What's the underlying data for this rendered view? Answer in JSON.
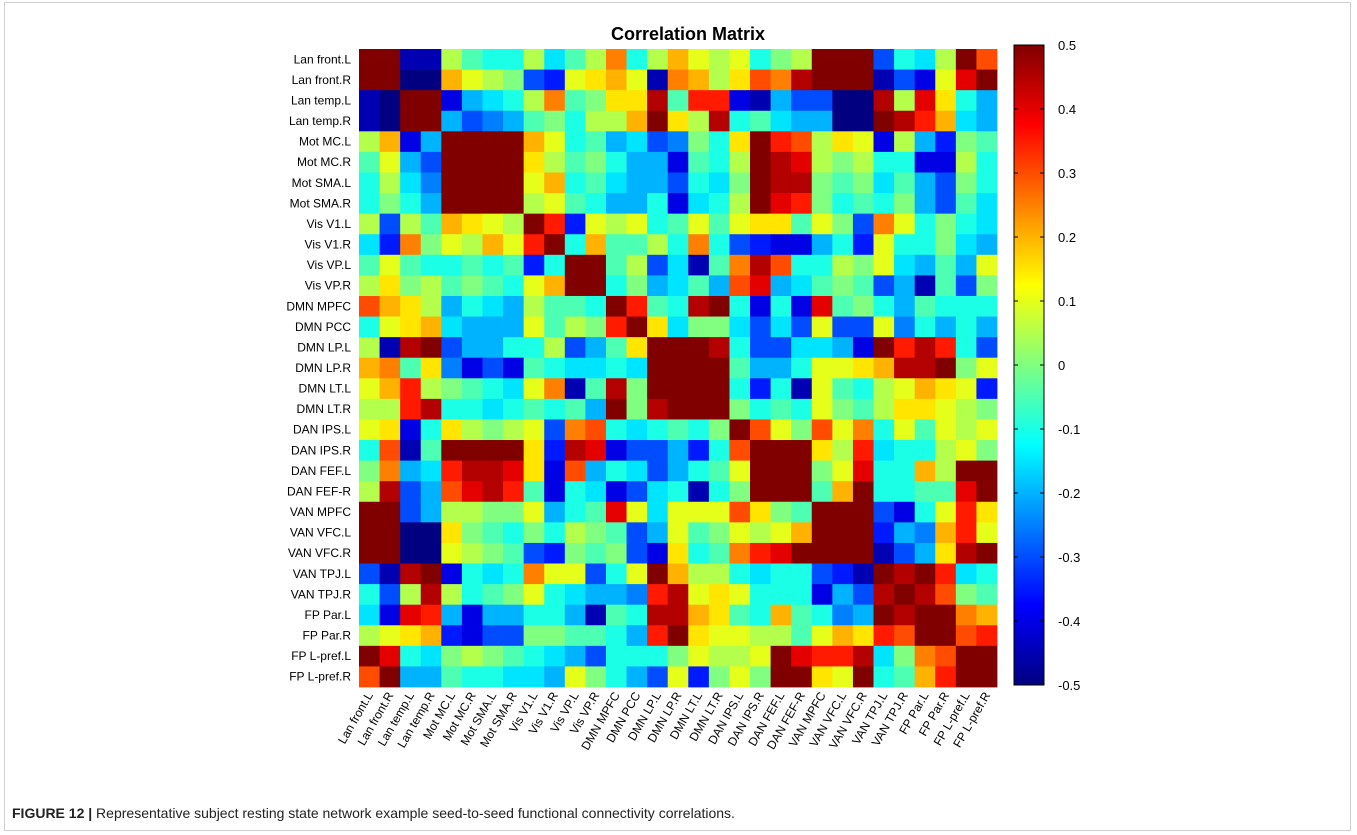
{
  "caption": {
    "label": "FIGURE 12 |",
    "text": " Representative subject resting state network example seed-to-seed functional connectivity correlations."
  },
  "chart_data": {
    "type": "heatmap",
    "title": "Correlation Matrix",
    "labels": [
      "Lan front.L",
      "Lan front.R",
      "Lan temp.L",
      "Lan temp.R",
      "Mot MC.L",
      "Mot MC.R",
      "Mot SMA.L",
      "Mot SMA.R",
      "Vis V1.L",
      "Vis V1.R",
      "Vis VP.L",
      "Vis VP.R",
      "DMN MPFC",
      "DMN PCC",
      "DMN LP.L",
      "DMN LP.R",
      "DMN LT.L",
      "DMN LT.R",
      "DAN IPS.L",
      "DAN IPS.R",
      "DAN FEF.L",
      "DAN FEF-R",
      "VAN MPFC",
      "VAN VFC.L",
      "VAN VFC.R",
      "VAN TPJ.L",
      "VAN TPJ.R",
      "FP Par.L",
      "FP Par.R",
      "FP L-pref.L",
      "FP L-pref.R"
    ],
    "colorbar": {
      "min": -0.5,
      "max": 0.5,
      "colormap": "jet",
      "ticks": [
        0.5,
        0.4,
        0.3,
        0.2,
        0.1,
        0,
        -0.1,
        -0.2,
        -0.3,
        -0.4,
        -0.5
      ],
      "tick_labels": [
        "0.5",
        "0.4",
        "0.3",
        "0.2",
        "0.1",
        "0",
        "-0.1",
        "-0.2",
        "-0.3",
        "-0.4",
        "-0.5"
      ]
    },
    "values": [
      [
        0.5,
        0.5,
        -0.45,
        -0.45,
        0.05,
        -0.05,
        -0.1,
        -0.1,
        0.05,
        -0.15,
        -0.05,
        0.05,
        0.25,
        -0.1,
        0.05,
        0.2,
        0.1,
        0.05,
        0.1,
        -0.1,
        0.0,
        0.05,
        0.5,
        0.5,
        0.5,
        -0.3,
        -0.1,
        -0.15,
        0.05,
        0.5,
        0.3
      ],
      [
        0.5,
        0.5,
        -0.5,
        -0.5,
        0.2,
        0.1,
        0.05,
        0.0,
        -0.3,
        -0.35,
        0.1,
        0.15,
        0.2,
        0.1,
        -0.45,
        0.25,
        0.2,
        0.05,
        0.15,
        0.3,
        0.25,
        0.45,
        0.5,
        0.5,
        0.5,
        -0.45,
        -0.3,
        -0.4,
        0.1,
        0.4,
        0.5
      ],
      [
        -0.45,
        -0.5,
        0.5,
        0.5,
        -0.4,
        -0.2,
        -0.15,
        -0.1,
        0.05,
        0.25,
        -0.05,
        0.0,
        0.15,
        0.15,
        0.45,
        -0.05,
        0.35,
        0.35,
        -0.4,
        -0.45,
        -0.2,
        -0.3,
        -0.3,
        -0.5,
        -0.5,
        0.45,
        0.05,
        0.4,
        0.15,
        -0.1,
        -0.2
      ],
      [
        -0.45,
        -0.5,
        0.5,
        0.5,
        -0.2,
        -0.3,
        -0.25,
        -0.2,
        -0.05,
        0.0,
        -0.1,
        0.05,
        0.05,
        0.2,
        0.5,
        0.15,
        0.05,
        0.45,
        -0.1,
        -0.05,
        -0.15,
        -0.2,
        -0.2,
        -0.5,
        -0.5,
        0.5,
        0.45,
        0.35,
        0.2,
        -0.15,
        -0.2
      ],
      [
        0.05,
        0.2,
        -0.4,
        -0.2,
        0.5,
        0.5,
        0.5,
        0.5,
        0.2,
        0.1,
        -0.1,
        -0.05,
        -0.2,
        -0.15,
        -0.3,
        -0.25,
        0.0,
        -0.1,
        0.15,
        0.5,
        0.35,
        0.3,
        0.05,
        0.15,
        0.1,
        -0.4,
        0.05,
        -0.2,
        -0.35,
        0.0,
        -0.05
      ],
      [
        -0.05,
        0.1,
        -0.2,
        -0.3,
        0.5,
        0.5,
        0.5,
        0.5,
        0.15,
        0.05,
        -0.05,
        0.0,
        -0.1,
        -0.2,
        -0.2,
        -0.4,
        -0.05,
        -0.1,
        0.05,
        0.5,
        0.45,
        0.4,
        0.05,
        0.0,
        0.05,
        -0.1,
        -0.1,
        -0.4,
        -0.4,
        0.05,
        -0.1
      ],
      [
        -0.1,
        0.05,
        -0.15,
        -0.25,
        0.5,
        0.5,
        0.5,
        0.5,
        0.1,
        0.2,
        -0.1,
        -0.05,
        -0.15,
        -0.2,
        -0.2,
        -0.3,
        -0.1,
        -0.15,
        0.0,
        0.5,
        0.45,
        0.45,
        0.0,
        -0.05,
        0.0,
        -0.15,
        -0.05,
        -0.2,
        -0.3,
        0.0,
        -0.1
      ],
      [
        -0.1,
        0.0,
        -0.1,
        -0.2,
        0.5,
        0.5,
        0.5,
        0.5,
        0.05,
        0.1,
        -0.05,
        -0.1,
        -0.2,
        -0.2,
        -0.1,
        -0.4,
        -0.15,
        -0.1,
        0.05,
        0.5,
        0.4,
        0.35,
        0.0,
        -0.1,
        -0.05,
        -0.1,
        0.0,
        -0.2,
        -0.3,
        -0.05,
        -0.15
      ],
      [
        0.05,
        -0.3,
        0.05,
        -0.05,
        0.2,
        0.15,
        0.1,
        0.05,
        0.5,
        0.35,
        -0.35,
        0.1,
        0.05,
        0.1,
        -0.1,
        -0.05,
        0.1,
        -0.05,
        0.1,
        0.15,
        0.15,
        -0.05,
        0.1,
        0.0,
        -0.3,
        0.25,
        0.1,
        -0.1,
        0.0,
        -0.1,
        -0.15
      ],
      [
        -0.15,
        -0.35,
        0.25,
        0.0,
        0.1,
        0.05,
        0.2,
        0.1,
        0.35,
        0.5,
        -0.1,
        0.2,
        -0.05,
        -0.05,
        0.05,
        -0.1,
        0.25,
        -0.1,
        -0.3,
        -0.35,
        -0.4,
        -0.4,
        -0.2,
        -0.1,
        -0.35,
        0.1,
        -0.1,
        -0.1,
        0.0,
        -0.15,
        -0.2
      ],
      [
        -0.05,
        0.1,
        -0.05,
        -0.1,
        -0.1,
        -0.05,
        -0.1,
        -0.05,
        -0.35,
        -0.1,
        0.5,
        0.5,
        -0.05,
        0.05,
        -0.3,
        -0.15,
        -0.45,
        -0.05,
        0.25,
        0.45,
        0.3,
        -0.1,
        -0.1,
        0.05,
        0.0,
        0.1,
        -0.15,
        -0.2,
        -0.05,
        -0.2,
        0.1
      ],
      [
        0.05,
        0.15,
        0.0,
        0.05,
        -0.05,
        0.0,
        -0.05,
        -0.1,
        0.1,
        0.2,
        0.5,
        0.5,
        -0.1,
        0.0,
        -0.2,
        -0.15,
        -0.05,
        -0.2,
        0.3,
        0.4,
        -0.2,
        -0.15,
        -0.05,
        0.0,
        -0.05,
        -0.3,
        -0.2,
        -0.45,
        -0.05,
        -0.3,
        0.0
      ],
      [
        0.3,
        0.2,
        0.15,
        0.05,
        -0.2,
        -0.1,
        -0.15,
        -0.2,
        0.05,
        -0.05,
        -0.05,
        -0.1,
        0.5,
        0.35,
        -0.05,
        -0.1,
        0.45,
        0.5,
        -0.1,
        -0.4,
        -0.1,
        -0.4,
        0.4,
        -0.05,
        0.0,
        -0.1,
        -0.2,
        -0.05,
        -0.1,
        -0.1,
        -0.1
      ],
      [
        -0.1,
        0.1,
        0.15,
        0.2,
        -0.15,
        -0.2,
        -0.2,
        -0.2,
        0.1,
        -0.05,
        0.05,
        0.0,
        0.35,
        0.5,
        0.15,
        -0.15,
        0.0,
        0.0,
        -0.15,
        -0.3,
        -0.15,
        -0.3,
        0.1,
        -0.3,
        -0.3,
        0.1,
        -0.25,
        -0.1,
        -0.2,
        -0.1,
        -0.2
      ],
      [
        0.05,
        -0.45,
        0.45,
        0.5,
        -0.3,
        -0.2,
        -0.2,
        -0.1,
        -0.1,
        0.05,
        -0.3,
        -0.2,
        -0.05,
        0.15,
        0.5,
        0.5,
        0.5,
        0.45,
        -0.1,
        -0.3,
        -0.3,
        -0.15,
        -0.15,
        -0.2,
        -0.4,
        0.5,
        0.35,
        0.45,
        0.35,
        -0.1,
        -0.3
      ],
      [
        0.2,
        0.25,
        -0.05,
        0.15,
        -0.25,
        -0.4,
        -0.3,
        -0.4,
        -0.05,
        -0.1,
        -0.15,
        -0.15,
        -0.1,
        -0.15,
        0.5,
        0.5,
        0.5,
        0.5,
        -0.05,
        -0.2,
        -0.2,
        -0.1,
        0.1,
        0.1,
        0.15,
        0.2,
        0.45,
        0.45,
        0.5,
        0.0,
        0.1
      ],
      [
        0.1,
        0.2,
        0.35,
        0.05,
        0.0,
        -0.05,
        -0.1,
        -0.15,
        0.1,
        0.25,
        -0.45,
        -0.05,
        0.45,
        0.0,
        0.5,
        0.5,
        0.5,
        0.5,
        -0.1,
        -0.35,
        -0.1,
        -0.45,
        0.1,
        -0.05,
        -0.1,
        0.05,
        0.1,
        0.2,
        0.15,
        0.1,
        -0.35
      ],
      [
        0.05,
        0.05,
        0.35,
        0.45,
        -0.1,
        -0.1,
        -0.15,
        -0.1,
        -0.05,
        -0.1,
        -0.05,
        -0.2,
        0.5,
        0.0,
        0.45,
        0.5,
        0.5,
        0.5,
        0.0,
        -0.1,
        -0.05,
        -0.1,
        0.1,
        0.0,
        -0.05,
        0.05,
        0.15,
        0.15,
        0.1,
        0.05,
        0.0
      ],
      [
        0.1,
        0.15,
        -0.4,
        -0.1,
        0.15,
        0.05,
        0.0,
        0.05,
        0.1,
        -0.3,
        0.25,
        0.3,
        -0.1,
        -0.15,
        -0.1,
        -0.05,
        -0.1,
        0.0,
        0.5,
        0.3,
        0.1,
        0.0,
        0.3,
        0.1,
        0.25,
        -0.1,
        0.1,
        -0.05,
        0.1,
        0.05,
        0.1
      ],
      [
        -0.1,
        0.3,
        -0.45,
        -0.05,
        0.5,
        0.5,
        0.5,
        0.5,
        0.15,
        -0.35,
        0.45,
        0.4,
        -0.4,
        -0.3,
        -0.3,
        -0.2,
        -0.35,
        -0.1,
        0.3,
        0.5,
        0.5,
        0.5,
        0.15,
        0.05,
        0.35,
        -0.15,
        -0.1,
        -0.1,
        0.05,
        0.1,
        0.0
      ],
      [
        0.0,
        0.25,
        -0.2,
        -0.15,
        0.35,
        0.45,
        0.45,
        0.4,
        0.15,
        -0.4,
        0.3,
        -0.2,
        -0.1,
        -0.15,
        -0.3,
        -0.2,
        -0.1,
        -0.05,
        0.1,
        0.5,
        0.5,
        0.5,
        0.0,
        0.1,
        0.4,
        -0.1,
        -0.1,
        0.2,
        0.05,
        0.5,
        0.5
      ],
      [
        0.05,
        0.45,
        -0.3,
        -0.2,
        0.3,
        0.4,
        0.45,
        0.35,
        -0.05,
        -0.4,
        -0.1,
        -0.15,
        -0.4,
        -0.3,
        -0.15,
        -0.1,
        -0.45,
        -0.1,
        0.0,
        0.5,
        0.5,
        0.5,
        -0.05,
        0.2,
        0.5,
        -0.1,
        -0.1,
        -0.05,
        -0.05,
        0.4,
        0.5
      ],
      [
        0.5,
        0.5,
        -0.3,
        -0.2,
        0.05,
        0.05,
        0.0,
        0.0,
        0.1,
        -0.2,
        -0.1,
        -0.05,
        0.4,
        0.1,
        -0.15,
        0.1,
        0.1,
        0.1,
        0.3,
        0.15,
        0.0,
        -0.05,
        0.5,
        0.5,
        0.5,
        -0.3,
        -0.4,
        -0.1,
        0.1,
        0.35,
        0.15
      ],
      [
        0.5,
        0.5,
        -0.5,
        -0.5,
        0.15,
        0.0,
        -0.05,
        -0.1,
        0.0,
        -0.1,
        0.05,
        0.0,
        -0.05,
        -0.3,
        -0.2,
        0.1,
        -0.05,
        0.0,
        0.1,
        0.05,
        0.1,
        0.2,
        0.5,
        0.5,
        0.5,
        -0.35,
        -0.2,
        -0.25,
        0.2,
        0.35,
        0.1
      ],
      [
        0.5,
        0.5,
        -0.5,
        -0.5,
        0.1,
        0.05,
        0.0,
        -0.05,
        -0.3,
        -0.35,
        0.0,
        -0.05,
        0.0,
        -0.3,
        -0.4,
        0.15,
        -0.1,
        -0.05,
        0.25,
        0.35,
        0.4,
        0.5,
        0.5,
        0.5,
        0.5,
        -0.45,
        -0.3,
        -0.2,
        0.15,
        0.45,
        0.5
      ],
      [
        -0.3,
        -0.45,
        0.45,
        0.5,
        -0.4,
        -0.1,
        -0.15,
        -0.1,
        0.25,
        0.1,
        0.1,
        -0.3,
        -0.1,
        0.1,
        0.5,
        0.2,
        0.05,
        0.05,
        -0.1,
        -0.15,
        -0.1,
        -0.1,
        -0.3,
        -0.35,
        -0.45,
        0.5,
        0.45,
        0.5,
        0.35,
        -0.15,
        -0.1
      ],
      [
        -0.1,
        -0.3,
        0.05,
        0.45,
        0.05,
        -0.1,
        -0.05,
        0.0,
        0.1,
        -0.1,
        -0.15,
        -0.2,
        -0.2,
        -0.25,
        0.35,
        0.45,
        0.1,
        0.15,
        0.1,
        -0.1,
        -0.1,
        -0.1,
        -0.4,
        -0.2,
        -0.3,
        0.45,
        0.5,
        0.45,
        0.3,
        0.0,
        -0.05
      ],
      [
        -0.15,
        -0.4,
        0.4,
        0.35,
        -0.2,
        -0.4,
        -0.2,
        -0.2,
        -0.1,
        -0.1,
        -0.2,
        -0.45,
        -0.05,
        -0.1,
        0.45,
        0.45,
        0.2,
        0.15,
        -0.05,
        -0.1,
        0.2,
        -0.05,
        -0.1,
        -0.25,
        -0.2,
        0.5,
        0.45,
        0.5,
        0.5,
        0.25,
        0.2
      ],
      [
        0.05,
        0.1,
        0.15,
        0.2,
        -0.35,
        -0.4,
        -0.3,
        -0.3,
        0.0,
        0.0,
        -0.05,
        -0.05,
        -0.1,
        -0.2,
        0.35,
        0.5,
        0.15,
        0.1,
        0.1,
        0.05,
        0.05,
        -0.05,
        0.1,
        0.2,
        0.15,
        0.35,
        0.3,
        0.5,
        0.5,
        0.3,
        0.35
      ],
      [
        0.5,
        0.4,
        -0.1,
        -0.15,
        0.0,
        0.05,
        0.0,
        -0.05,
        -0.1,
        -0.15,
        -0.2,
        -0.3,
        -0.1,
        -0.1,
        -0.1,
        0.0,
        0.1,
        0.05,
        0.05,
        0.1,
        0.5,
        0.4,
        0.35,
        0.35,
        0.45,
        -0.15,
        0.0,
        0.25,
        0.3,
        0.5,
        0.5
      ],
      [
        0.3,
        0.5,
        -0.2,
        -0.2,
        -0.05,
        -0.1,
        -0.1,
        -0.15,
        -0.15,
        -0.2,
        0.1,
        0.0,
        -0.1,
        -0.2,
        -0.3,
        0.1,
        -0.35,
        0.0,
        0.1,
        0.0,
        0.5,
        0.5,
        0.15,
        0.1,
        0.5,
        -0.1,
        -0.05,
        0.2,
        0.35,
        0.5,
        0.5
      ]
    ]
  }
}
